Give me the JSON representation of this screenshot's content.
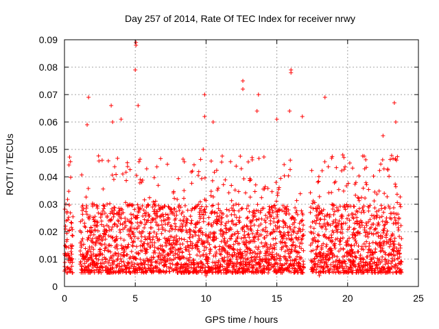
{
  "chart_data": {
    "type": "scatter",
    "title": "Day 257 of 2014, Rate Of TEC Index for receiver nrwy",
    "xlabel": "GPS time / hours",
    "ylabel": "ROTI / TECUs",
    "xlim": [
      0,
      25
    ],
    "ylim": [
      0,
      0.09
    ],
    "xticks": [
      0,
      5,
      10,
      15,
      20,
      25
    ],
    "xtick_labels": [
      "0",
      "5",
      "10",
      "15",
      "20",
      "25"
    ],
    "yticks": [
      0,
      0.01,
      0.02,
      0.03,
      0.04,
      0.05,
      0.06,
      0.07,
      0.08,
      0.09
    ],
    "ytick_labels": [
      "0",
      "0.01",
      "0.02",
      "0.03",
      "0.04",
      "0.05",
      "0.06",
      "0.07",
      "0.08",
      "0.09"
    ],
    "grid": true,
    "marker": "+",
    "color": "#ff0000",
    "data_gaps_hours": [
      [
        0.6,
        1.1
      ],
      [
        16.9,
        17.35
      ],
      [
        23.8,
        25
      ]
    ],
    "notable_points": [
      {
        "x": 5.05,
        "y": 0.089
      },
      {
        "x": 5.05,
        "y": 0.088
      },
      {
        "x": 5.0,
        "y": 0.079
      },
      {
        "x": 16.0,
        "y": 0.079
      },
      {
        "x": 16.0,
        "y": 0.078
      },
      {
        "x": 12.6,
        "y": 0.075
      },
      {
        "x": 12.6,
        "y": 0.072
      },
      {
        "x": 9.9,
        "y": 0.07
      },
      {
        "x": 13.7,
        "y": 0.07
      },
      {
        "x": 1.7,
        "y": 0.069
      },
      {
        "x": 18.4,
        "y": 0.069
      },
      {
        "x": 23.3,
        "y": 0.067
      },
      {
        "x": 3.3,
        "y": 0.066
      },
      {
        "x": 5.2,
        "y": 0.066
      },
      {
        "x": 13.6,
        "y": 0.064
      },
      {
        "x": 15.9,
        "y": 0.064
      },
      {
        "x": 9.9,
        "y": 0.062
      },
      {
        "x": 16.8,
        "y": 0.062
      },
      {
        "x": 4.0,
        "y": 0.061
      },
      {
        "x": 3.4,
        "y": 0.06
      },
      {
        "x": 10.5,
        "y": 0.06
      },
      {
        "x": 15.0,
        "y": 0.061
      },
      {
        "x": 1.6,
        "y": 0.059
      },
      {
        "x": 23.4,
        "y": 0.06
      },
      {
        "x": 9.8,
        "y": 0.05
      },
      {
        "x": 22.5,
        "y": 0.055
      },
      {
        "x": 0.1,
        "y": 0.03
      },
      {
        "x": 10.0,
        "y": 0.004
      },
      {
        "x": 18.0,
        "y": 0.004
      }
    ],
    "baseline_range": [
      0.005,
      0.03
    ]
  }
}
